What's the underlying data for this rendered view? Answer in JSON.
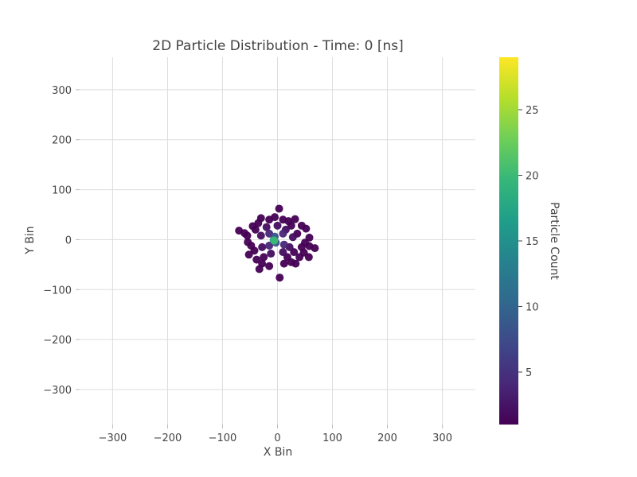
{
  "chart_data": {
    "type": "scatter",
    "title": "2D Particle Distribution - Time: 0 [ns]",
    "xlabel": "X Bin",
    "ylabel": "Y Bin",
    "colorbar_label": "Particle Count",
    "xlim": [
      -360,
      360
    ],
    "ylim": [
      -370,
      365
    ],
    "xticks": [
      -300,
      -200,
      -100,
      0,
      100,
      200,
      300
    ],
    "yticks": [
      -300,
      -200,
      -100,
      0,
      100,
      200,
      300
    ],
    "xtick_labels": [
      "−300",
      "−200",
      "−100",
      "0",
      "100",
      "200",
      "300"
    ],
    "ytick_labels": [
      "−300",
      "−200",
      "−100",
      "0",
      "100",
      "200",
      "300"
    ],
    "colorbar_range": [
      1,
      29
    ],
    "colorbar_ticks": [
      5,
      10,
      15,
      20,
      25
    ],
    "colorscale": "viridis",
    "grid": true,
    "points": [
      {
        "x": 3,
        "y": 62,
        "c": 1
      },
      {
        "x": -70,
        "y": 18,
        "c": 1
      },
      {
        "x": -60,
        "y": 13,
        "c": 1
      },
      {
        "x": -55,
        "y": 8,
        "c": 1
      },
      {
        "x": 68,
        "y": -17,
        "c": 1
      },
      {
        "x": 58,
        "y": -13,
        "c": 1
      },
      {
        "x": 44,
        "y": 28,
        "c": 1
      },
      {
        "x": 52,
        "y": 22,
        "c": 1
      },
      {
        "x": 58,
        "y": 4,
        "c": 1
      },
      {
        "x": 32,
        "y": 41,
        "c": 1
      },
      {
        "x": 20,
        "y": 37,
        "c": 1
      },
      {
        "x": -30,
        "y": 43,
        "c": 1
      },
      {
        "x": -15,
        "y": 40,
        "c": 1
      },
      {
        "x": 10,
        "y": 40,
        "c": 1
      },
      {
        "x": -45,
        "y": 27,
        "c": 1
      },
      {
        "x": -40,
        "y": 20,
        "c": 1
      },
      {
        "x": -54,
        "y": -5,
        "c": 1
      },
      {
        "x": -48,
        "y": -12,
        "c": 1
      },
      {
        "x": -52,
        "y": -30,
        "c": 1
      },
      {
        "x": -42,
        "y": -22,
        "c": 1
      },
      {
        "x": -33,
        "y": -59,
        "c": 1
      },
      {
        "x": -28,
        "y": -48,
        "c": 1
      },
      {
        "x": -15,
        "y": -53,
        "c": 1
      },
      {
        "x": 4,
        "y": -76,
        "c": 1
      },
      {
        "x": 12,
        "y": -48,
        "c": 1
      },
      {
        "x": 25,
        "y": -45,
        "c": 1
      },
      {
        "x": 33,
        "y": -48,
        "c": 1
      },
      {
        "x": 48,
        "y": -26,
        "c": 1
      },
      {
        "x": 40,
        "y": -35,
        "c": 1
      },
      {
        "x": 57,
        "y": -35,
        "c": 1
      },
      {
        "x": 50,
        "y": -6,
        "c": 1
      },
      {
        "x": 44,
        "y": -15,
        "c": 1
      },
      {
        "x": 36,
        "y": 12,
        "c": 1
      },
      {
        "x": -35,
        "y": 33,
        "c": 1
      },
      {
        "x": -5,
        "y": 45,
        "c": 1
      },
      {
        "x": 25,
        "y": 28,
        "c": 1
      },
      {
        "x": 30,
        "y": -25,
        "c": 1
      },
      {
        "x": 18,
        "y": -35,
        "c": 1
      },
      {
        "x": -25,
        "y": -35,
        "c": 1
      },
      {
        "x": -38,
        "y": -40,
        "c": 1
      },
      {
        "x": -20,
        "y": 25,
        "c": 2
      },
      {
        "x": 15,
        "y": 20,
        "c": 2
      },
      {
        "x": 22,
        "y": -15,
        "c": 2
      },
      {
        "x": -28,
        "y": -15,
        "c": 2
      },
      {
        "x": -12,
        "y": -28,
        "c": 2
      },
      {
        "x": 10,
        "y": -25,
        "c": 2
      },
      {
        "x": -30,
        "y": 8,
        "c": 2
      },
      {
        "x": 28,
        "y": 5,
        "c": 2
      },
      {
        "x": 0,
        "y": 28,
        "c": 2
      },
      {
        "x": -15,
        "y": 12,
        "c": 4
      },
      {
        "x": 10,
        "y": 12,
        "c": 4
      },
      {
        "x": 12,
        "y": -10,
        "c": 4
      },
      {
        "x": -15,
        "y": -12,
        "c": 4
      },
      {
        "x": -5,
        "y": 6,
        "c": 8
      },
      {
        "x": -3,
        "y": -6,
        "c": 8
      },
      {
        "x": -7,
        "y": -1,
        "c": 14
      },
      {
        "x": -6,
        "y": -2,
        "c": 20
      }
    ]
  }
}
